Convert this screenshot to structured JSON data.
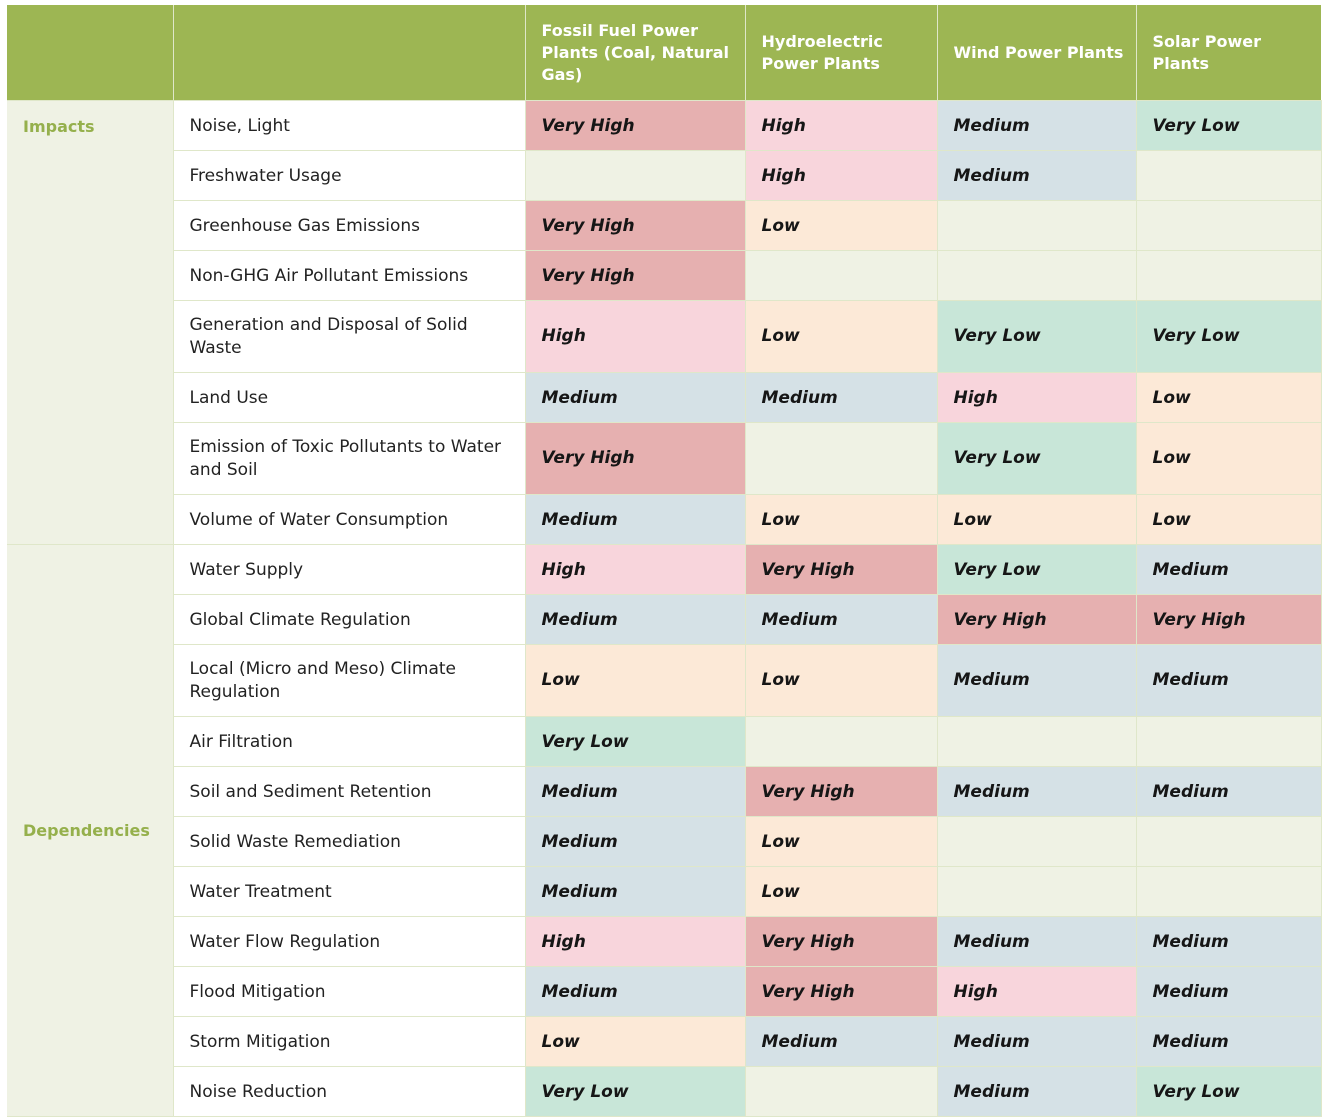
{
  "header": {
    "corner": "",
    "factor": "",
    "columns": [
      "Fossil Fuel Power Plants (Coal, Natural Gas)",
      "Hydroelectric Power Plants",
      "Wind Power Plants",
      "Solar Power Plants"
    ]
  },
  "groups": {
    "impacts": "Impacts",
    "dependencies": "Dependencies"
  },
  "impacts": [
    {
      "factor": "Noise, Light",
      "values": [
        "Very High",
        "High",
        "Medium",
        "Very Low"
      ]
    },
    {
      "factor": "Freshwater Usage",
      "values": [
        "",
        "High",
        "Medium",
        ""
      ]
    },
    {
      "factor": "Greenhouse Gas Emissions",
      "values": [
        "Very High",
        "Low",
        "",
        ""
      ]
    },
    {
      "factor": "Non-GHG Air Pollutant Emissions",
      "values": [
        "Very High",
        "",
        "",
        ""
      ]
    },
    {
      "factor": "Generation and Disposal of Solid Waste",
      "values": [
        "High",
        "Low",
        "Very Low",
        "Very Low"
      ]
    },
    {
      "factor": "Land Use",
      "values": [
        "Medium",
        "Medium",
        "High",
        "Low"
      ]
    },
    {
      "factor": "Emission of Toxic Pollutants to Water and Soil",
      "values": [
        "Very High",
        "",
        "Very Low",
        "Low"
      ]
    },
    {
      "factor": "Volume of Water Consumption",
      "values": [
        "Medium",
        "Low",
        "Low",
        "Low"
      ]
    }
  ],
  "dependencies": [
    {
      "factor": "Water Supply",
      "values": [
        "High",
        "Very High",
        "Very Low",
        "Medium"
      ]
    },
    {
      "factor": "Global Climate Regulation",
      "values": [
        "Medium",
        "Medium",
        "Very High",
        "Very High"
      ]
    },
    {
      "factor": "Local (Micro and Meso) Climate Regulation",
      "values": [
        "Low",
        "Low",
        "Medium",
        "Medium"
      ]
    },
    {
      "factor": "Air Filtration",
      "values": [
        "Very Low",
        "",
        "",
        ""
      ]
    },
    {
      "factor": "Soil and Sediment Retention",
      "values": [
        "Medium",
        "Very High",
        "Medium",
        "Medium"
      ]
    },
    {
      "factor": "Solid Waste Remediation",
      "values": [
        "Medium",
        "Low",
        "",
        ""
      ]
    },
    {
      "factor": "Water Treatment",
      "values": [
        "Medium",
        "Low",
        "",
        ""
      ]
    },
    {
      "factor": "Water Flow Regulation",
      "values": [
        "High",
        "Very High",
        "Medium",
        "Medium"
      ]
    },
    {
      "factor": "Flood Mitigation",
      "values": [
        "Medium",
        "Very High",
        "High",
        "Medium"
      ]
    },
    {
      "factor": "Storm Mitigation",
      "values": [
        "Low",
        "Medium",
        "Medium",
        "Medium"
      ]
    },
    {
      "factor": "Noise Reduction",
      "values": [
        "Very Low",
        "",
        "Medium",
        "Very Low"
      ]
    }
  ],
  "colors": {
    "header": "#9db653",
    "group_text": "#95b04c",
    "empty": "#eff2e4",
    "Very High": "#e6b0b0",
    "High": "#f8d5dc",
    "Medium": "#d5e1e6",
    "Low": "#fce9d7",
    "Very Low": "#c8e6d8"
  }
}
